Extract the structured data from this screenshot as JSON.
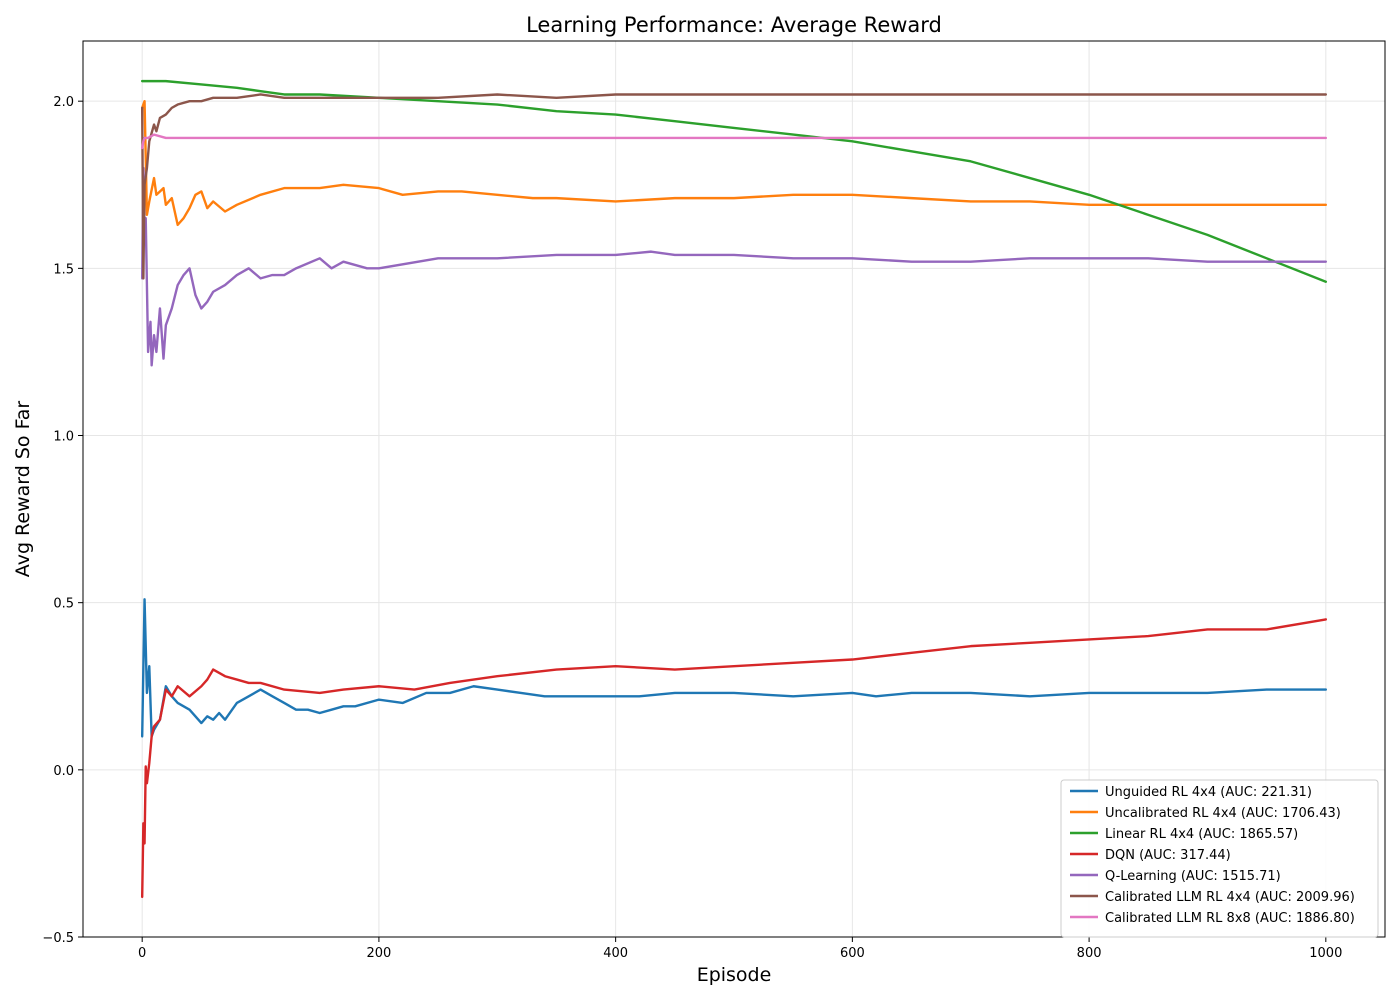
{
  "chart_data": {
    "type": "line",
    "title": "Learning Performance: Average Reward",
    "xlabel": "Episode",
    "ylabel": "Avg Reward So Far",
    "xlim": [
      -50,
      1050
    ],
    "ylim": [
      -0.5,
      2.18
    ],
    "xticks": [
      0,
      200,
      400,
      600,
      800,
      1000
    ],
    "xtick_labels": [
      "0",
      "200",
      "400",
      "600",
      "800",
      "1000"
    ],
    "yticks": [
      -0.5,
      0.0,
      0.5,
      1.0,
      1.5,
      2.0
    ],
    "ytick_labels": [
      "−0.5",
      "0.0",
      "0.5",
      "1.0",
      "1.5",
      "2.0"
    ],
    "grid": true,
    "legend_position": "lower-right",
    "series": [
      {
        "name": "Unguided RL 4x4 (AUC: 221.31)",
        "color": "#1f77b4",
        "x": [
          0,
          2,
          4,
          6,
          8,
          10,
          15,
          20,
          25,
          30,
          40,
          50,
          55,
          60,
          65,
          70,
          80,
          90,
          100,
          110,
          120,
          130,
          140,
          150,
          160,
          170,
          180,
          200,
          220,
          240,
          260,
          280,
          300,
          320,
          340,
          360,
          380,
          400,
          420,
          450,
          480,
          500,
          550,
          600,
          620,
          650,
          700,
          750,
          800,
          850,
          900,
          950,
          1000
        ],
        "y": [
          0.1,
          0.51,
          0.23,
          0.31,
          0.1,
          0.12,
          0.15,
          0.25,
          0.22,
          0.2,
          0.18,
          0.14,
          0.16,
          0.15,
          0.17,
          0.15,
          0.2,
          0.22,
          0.24,
          0.22,
          0.2,
          0.18,
          0.18,
          0.17,
          0.18,
          0.19,
          0.19,
          0.21,
          0.2,
          0.23,
          0.23,
          0.25,
          0.24,
          0.23,
          0.22,
          0.22,
          0.22,
          0.22,
          0.22,
          0.23,
          0.23,
          0.23,
          0.22,
          0.23,
          0.22,
          0.23,
          0.23,
          0.22,
          0.23,
          0.23,
          0.23,
          0.24,
          0.24
        ]
      },
      {
        "name": "Uncalibrated RL 4x4 (AUC: 1706.43)",
        "color": "#ff7f0e",
        "x": [
          0,
          2,
          4,
          6,
          10,
          12,
          15,
          18,
          20,
          25,
          30,
          35,
          40,
          45,
          50,
          55,
          60,
          70,
          80,
          100,
          120,
          150,
          170,
          200,
          220,
          250,
          270,
          300,
          330,
          350,
          400,
          450,
          500,
          550,
          600,
          650,
          700,
          750,
          800,
          850,
          900,
          950,
          1000
        ],
        "y": [
          1.98,
          2.0,
          1.66,
          1.7,
          1.77,
          1.72,
          1.73,
          1.74,
          1.69,
          1.71,
          1.63,
          1.65,
          1.68,
          1.72,
          1.73,
          1.68,
          1.7,
          1.67,
          1.69,
          1.72,
          1.74,
          1.74,
          1.75,
          1.74,
          1.72,
          1.73,
          1.73,
          1.72,
          1.71,
          1.71,
          1.7,
          1.71,
          1.71,
          1.72,
          1.72,
          1.71,
          1.7,
          1.7,
          1.69,
          1.69,
          1.69,
          1.69,
          1.69
        ]
      },
      {
        "name": "Linear RL 4x4 (AUC: 1865.57)",
        "color": "#2ca02c",
        "x": [
          0,
          20,
          50,
          80,
          100,
          120,
          150,
          200,
          250,
          300,
          350,
          400,
          450,
          500,
          550,
          600,
          650,
          700,
          750,
          800,
          850,
          900,
          950,
          1000
        ],
        "y": [
          2.06,
          2.06,
          2.05,
          2.04,
          2.03,
          2.02,
          2.02,
          2.01,
          2.0,
          1.99,
          1.97,
          1.96,
          1.94,
          1.92,
          1.9,
          1.88,
          1.85,
          1.82,
          1.77,
          1.72,
          1.66,
          1.6,
          1.53,
          1.46
        ]
      },
      {
        "name": "DQN (AUC: 317.44)",
        "color": "#d62728",
        "x": [
          0,
          1,
          2,
          3,
          4,
          6,
          8,
          10,
          15,
          20,
          25,
          30,
          40,
          50,
          55,
          60,
          70,
          80,
          90,
          100,
          120,
          150,
          170,
          200,
          230,
          260,
          300,
          350,
          400,
          450,
          500,
          550,
          600,
          650,
          700,
          750,
          800,
          850,
          900,
          950,
          1000
        ],
        "y": [
          -0.38,
          -0.16,
          -0.22,
          0.01,
          -0.04,
          0.02,
          0.1,
          0.13,
          0.15,
          0.24,
          0.22,
          0.25,
          0.22,
          0.25,
          0.27,
          0.3,
          0.28,
          0.27,
          0.26,
          0.26,
          0.24,
          0.23,
          0.24,
          0.25,
          0.24,
          0.26,
          0.28,
          0.3,
          0.31,
          0.3,
          0.31,
          0.32,
          0.33,
          0.35,
          0.37,
          0.38,
          0.39,
          0.4,
          0.42,
          0.42,
          0.45
        ]
      },
      {
        "name": "Q-Learning (AUC: 1515.71)",
        "color": "#9467bd",
        "x": [
          0,
          1,
          2,
          3,
          5,
          7,
          8,
          10,
          12,
          15,
          18,
          20,
          25,
          30,
          35,
          40,
          45,
          50,
          55,
          60,
          70,
          80,
          90,
          100,
          110,
          120,
          130,
          150,
          160,
          170,
          190,
          200,
          250,
          300,
          350,
          400,
          430,
          450,
          500,
          550,
          600,
          650,
          700,
          750,
          800,
          850,
          900,
          950,
          1000
        ],
        "y": [
          1.47,
          1.8,
          1.62,
          1.65,
          1.25,
          1.34,
          1.21,
          1.3,
          1.25,
          1.38,
          1.23,
          1.33,
          1.38,
          1.45,
          1.48,
          1.5,
          1.42,
          1.38,
          1.4,
          1.43,
          1.45,
          1.48,
          1.5,
          1.47,
          1.48,
          1.48,
          1.5,
          1.53,
          1.5,
          1.52,
          1.5,
          1.5,
          1.53,
          1.53,
          1.54,
          1.54,
          1.55,
          1.54,
          1.54,
          1.53,
          1.53,
          1.52,
          1.52,
          1.53,
          1.53,
          1.53,
          1.52,
          1.52,
          1.52
        ]
      },
      {
        "name": "Calibrated LLM RL 4x4 (AUC: 2009.96)",
        "color": "#8c564b",
        "x": [
          0,
          1,
          2,
          4,
          6,
          10,
          12,
          15,
          20,
          25,
          30,
          40,
          50,
          60,
          80,
          100,
          120,
          150,
          180,
          200,
          250,
          300,
          350,
          400,
          500,
          600,
          700,
          800,
          900,
          1000
        ],
        "y": [
          1.98,
          1.47,
          1.75,
          1.8,
          1.88,
          1.93,
          1.91,
          1.95,
          1.96,
          1.98,
          1.99,
          2.0,
          2.0,
          2.01,
          2.01,
          2.02,
          2.01,
          2.01,
          2.01,
          2.01,
          2.01,
          2.02,
          2.01,
          2.02,
          2.02,
          2.02,
          2.02,
          2.02,
          2.02,
          2.02
        ]
      },
      {
        "name": "Calibrated LLM RL 8x8 (AUC: 1886.80)",
        "color": "#e377c2",
        "x": [
          0,
          1,
          2,
          5,
          10,
          20,
          50,
          100,
          150,
          160,
          200,
          300,
          400,
          500,
          600,
          700,
          800,
          900,
          1000
        ],
        "y": [
          1.86,
          1.88,
          1.89,
          1.89,
          1.9,
          1.89,
          1.89,
          1.89,
          1.89,
          1.89,
          1.89,
          1.89,
          1.89,
          1.89,
          1.89,
          1.89,
          1.89,
          1.89,
          1.89
        ]
      }
    ]
  }
}
